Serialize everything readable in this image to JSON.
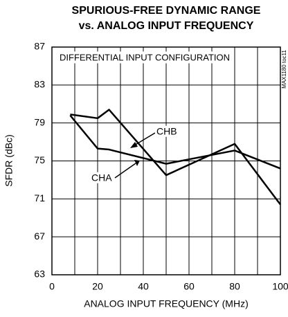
{
  "chart_data": {
    "type": "line",
    "title": [
      "SPURIOUS-FREE DYNAMIC RANGE",
      "vs. ANALOG INPUT FREQUENCY"
    ],
    "x_label": "ANALOG INPUT FREQUENCY (MHz)",
    "y_label": "SFDR (dBc)",
    "annotations": [
      "DIFFERENTIAL INPUT CONFIGURATION",
      "CHB",
      "CHA",
      "MAX1180 toc11"
    ],
    "series": [
      {
        "name": "CHA",
        "color": "#000000",
        "x": [
          8,
          20,
          25,
          50,
          80,
          100
        ],
        "values": [
          79.8,
          76.3,
          76.2,
          74.7,
          76.1,
          74.2
        ]
      },
      {
        "name": "CHB",
        "color": "#000000",
        "x": [
          8,
          20,
          25,
          50,
          80,
          100
        ],
        "values": [
          79.9,
          79.5,
          80.4,
          73.5,
          76.8,
          70.4
        ]
      }
    ],
    "xlim": [
      0,
      100
    ],
    "xticks": [
      0,
      20,
      40,
      60,
      80,
      100
    ],
    "ylim": [
      63,
      87
    ],
    "yticks": [
      63,
      67,
      71,
      75,
      79,
      83,
      87
    ],
    "x_minor_grid": [
      10,
      30,
      50,
      70,
      90
    ],
    "grid": true
  }
}
